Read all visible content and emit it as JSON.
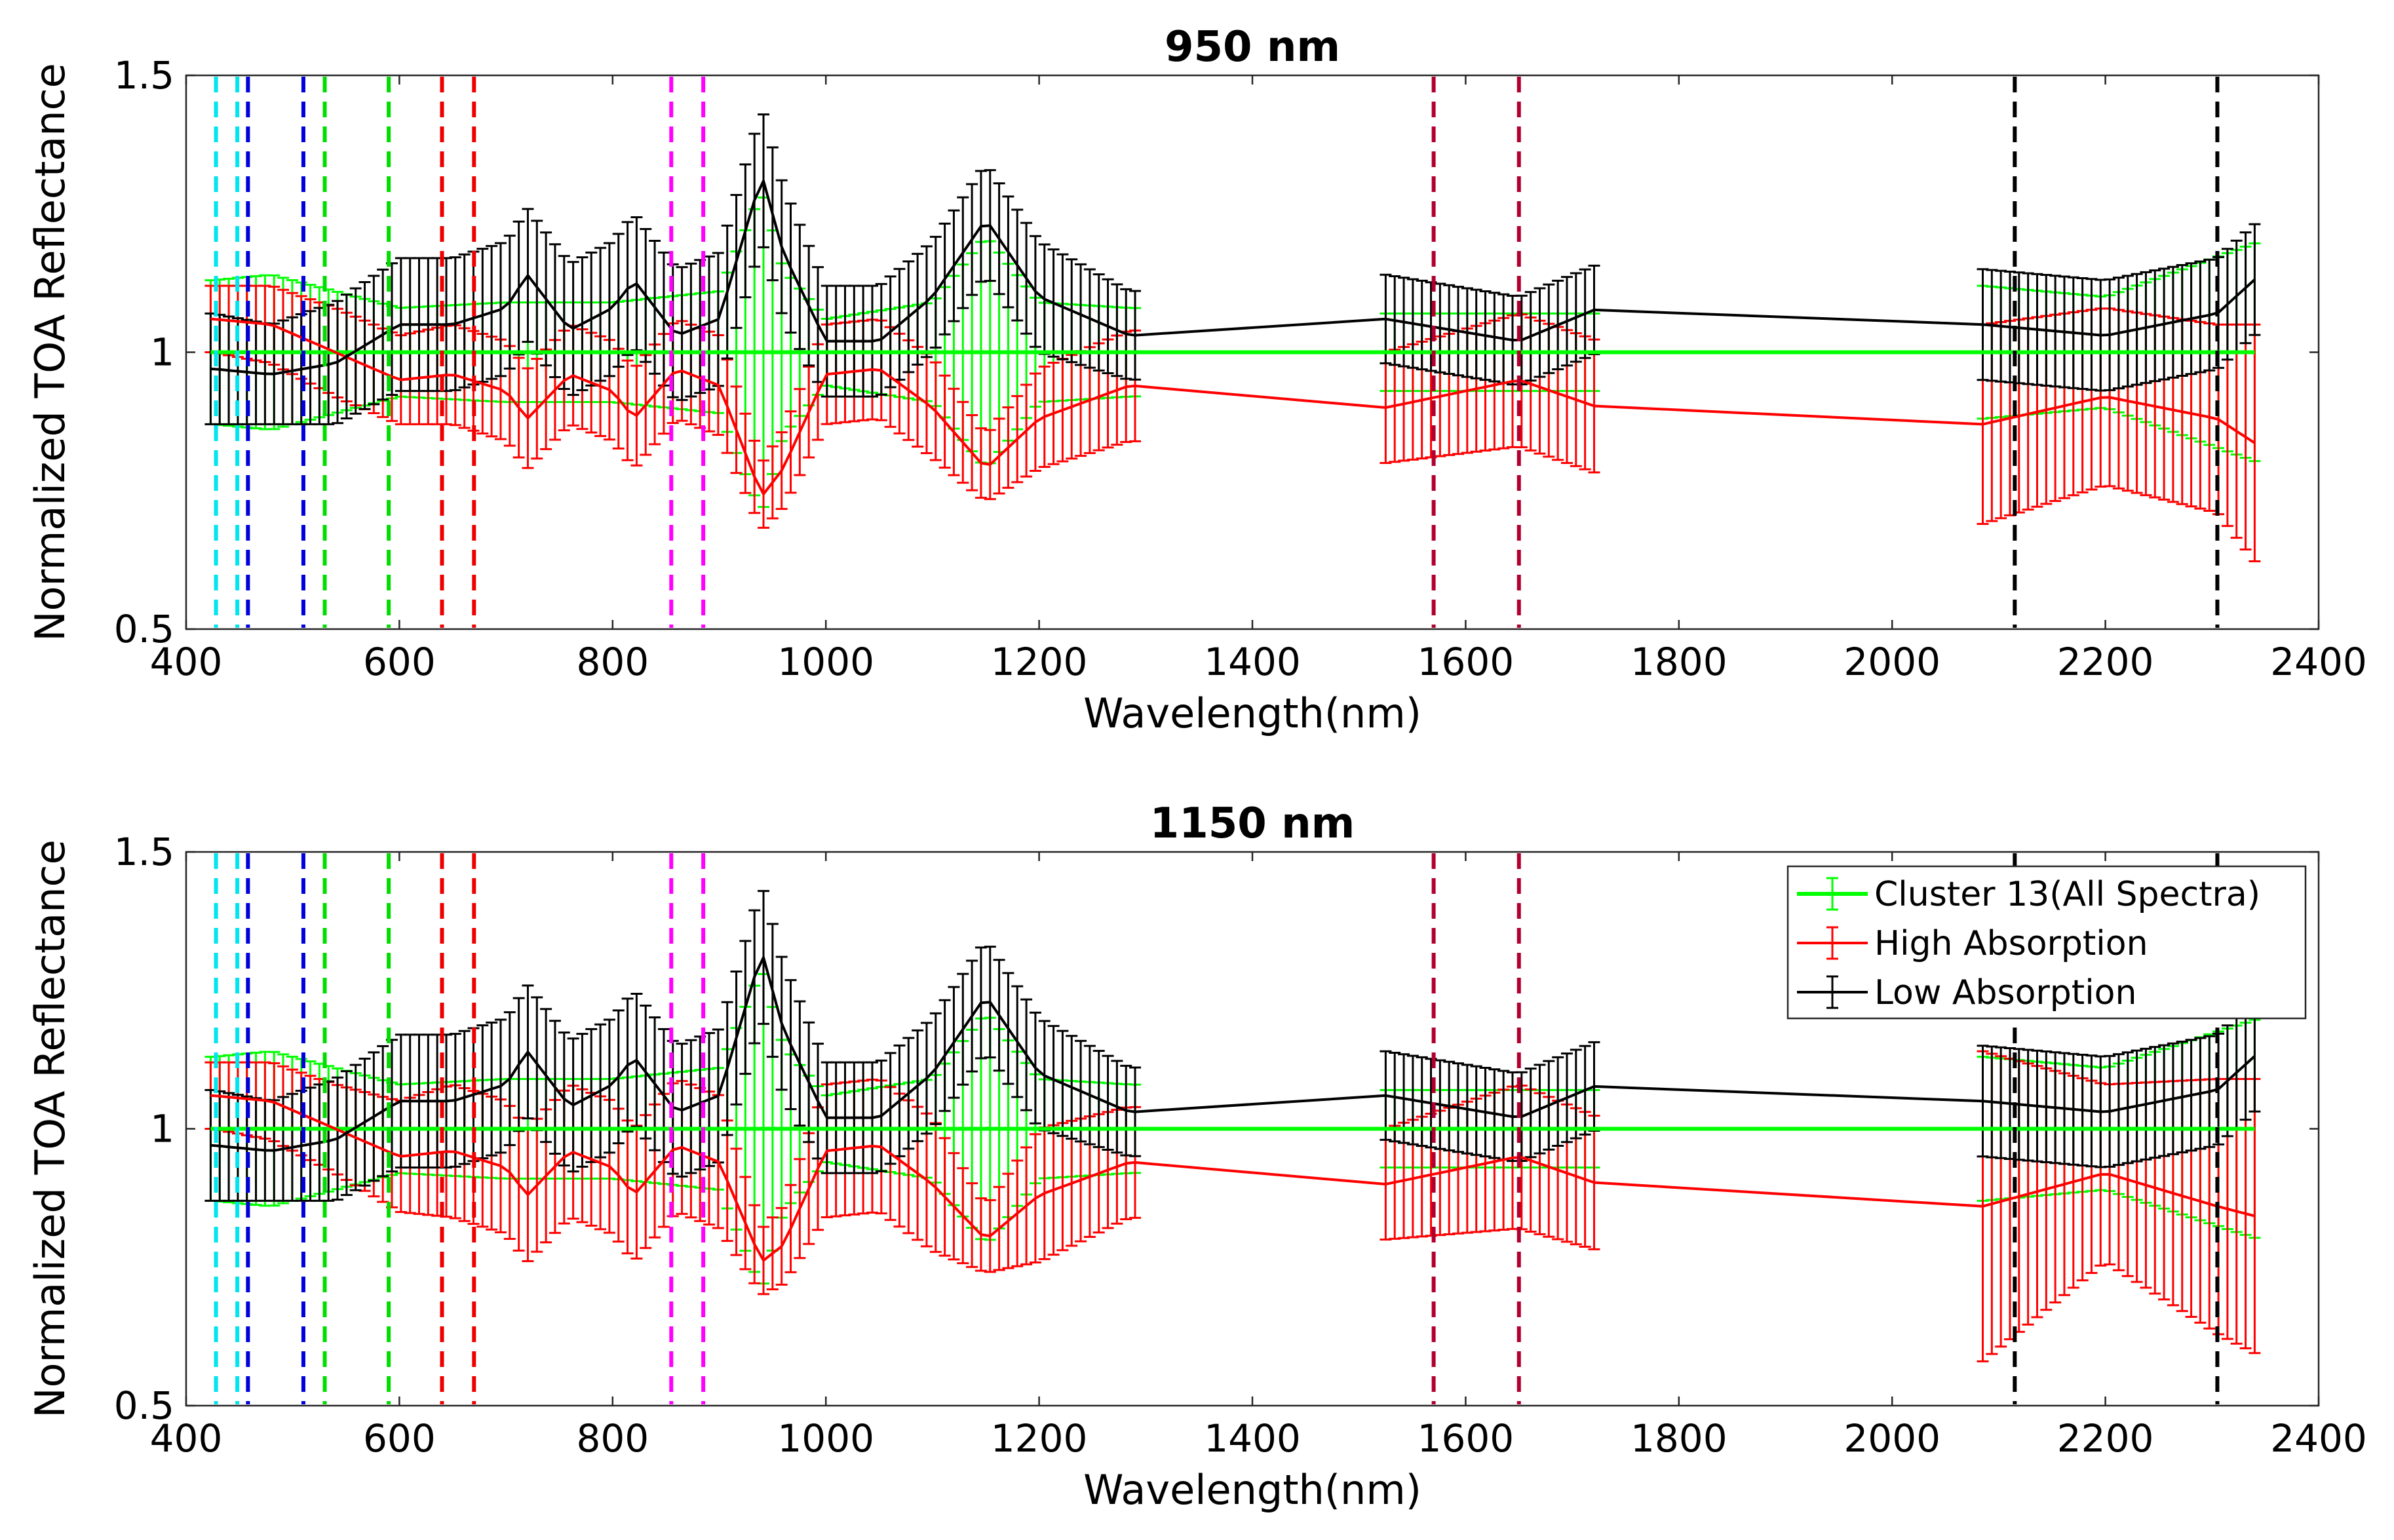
{
  "figure": {
    "colors": {
      "cluster": "#00ff00",
      "high": "#ff0000",
      "low": "#000000",
      "cyan": "#00e5ee",
      "blue": "#0000dd",
      "green": "#00dd00",
      "red": "#ee0000",
      "magenta": "#ff00ff",
      "darkred": "#b00030",
      "black": "#000000"
    }
  },
  "chart_data": [
    {
      "type": "line",
      "error_bars": true,
      "title": "950 nm",
      "xlabel": "Wavelength(nm)",
      "ylabel": "Normalized TOA Reflectance",
      "xlim": [
        400,
        2400
      ],
      "ylim": [
        0.5,
        1.5
      ],
      "xticks": [
        "400",
        "600",
        "800",
        "1000",
        "1200",
        "1400",
        "1600",
        "1800",
        "2000",
        "2200",
        "2400"
      ],
      "yticks": [
        "0.5",
        "1",
        "1.5"
      ],
      "legend": null,
      "vertical_lines": [
        {
          "x": 428,
          "color": "cyan"
        },
        {
          "x": 448,
          "color": "cyan"
        },
        {
          "x": 458,
          "color": "blue"
        },
        {
          "x": 510,
          "color": "blue"
        },
        {
          "x": 530,
          "color": "green"
        },
        {
          "x": 590,
          "color": "green"
        },
        {
          "x": 640,
          "color": "red"
        },
        {
          "x": 670,
          "color": "red"
        },
        {
          "x": 855,
          "color": "magenta"
        },
        {
          "x": 885,
          "color": "magenta"
        },
        {
          "x": 1570,
          "color": "darkred"
        },
        {
          "x": 1650,
          "color": "darkred"
        },
        {
          "x": 2115,
          "color": "black"
        },
        {
          "x": 2305,
          "color": "black"
        }
      ],
      "series": [
        {
          "name": "Cluster 13(All Spectra)",
          "color": "cluster",
          "points": [
            [
              425,
              1.0,
              0.13
            ],
            [
              480,
              1.0,
              0.14
            ],
            [
              540,
              1.0,
              0.11
            ],
            [
              600,
              1.0,
              0.08
            ],
            [
              700,
              1.0,
              0.09
            ],
            [
              800,
              1.0,
              0.09
            ],
            [
              900,
              1.0,
              0.11
            ],
            [
              940,
              1.0,
              0.29
            ],
            [
              960,
              1.0,
              0.15
            ],
            [
              1000,
              1.0,
              0.06
            ],
            [
              1100,
              1.0,
              0.09
            ],
            [
              1150,
              1.0,
              0.21
            ],
            [
              1200,
              1.0,
              0.09
            ],
            [
              1285,
              1.0,
              0.08
            ],
            [
              1525,
              1.0,
              0.07
            ],
            [
              1650,
              1.0,
              0.07
            ],
            [
              1725,
              1.0,
              0.07
            ],
            [
              2085,
              1.0,
              0.12
            ],
            [
              2200,
              1.0,
              0.1
            ],
            [
              2345,
              1.0,
              0.2
            ]
          ]
        },
        {
          "name": "High Absorption",
          "color": "high",
          "points": [
            [
              425,
              1.06,
              0.06
            ],
            [
              480,
              1.05,
              0.07
            ],
            [
              540,
              1.0,
              0.08
            ],
            [
              600,
              0.95,
              0.08
            ],
            [
              650,
              0.96,
              0.09
            ],
            [
              700,
              0.93,
              0.09
            ],
            [
              720,
              0.88,
              0.09
            ],
            [
              760,
              0.96,
              0.09
            ],
            [
              800,
              0.93,
              0.09
            ],
            [
              820,
              0.88,
              0.09
            ],
            [
              860,
              0.97,
              0.09
            ],
            [
              900,
              0.94,
              0.09
            ],
            [
              940,
              0.74,
              0.06
            ],
            [
              960,
              0.79,
              0.07
            ],
            [
              1000,
              0.96,
              0.09
            ],
            [
              1050,
              0.97,
              0.09
            ],
            [
              1100,
              0.9,
              0.09
            ],
            [
              1150,
              0.79,
              0.06
            ],
            [
              1200,
              0.88,
              0.09
            ],
            [
              1285,
              0.94,
              0.1
            ],
            [
              1525,
              0.9,
              0.1
            ],
            [
              1650,
              0.95,
              0.12
            ],
            [
              1725,
              0.9,
              0.12
            ],
            [
              2085,
              0.87,
              0.18
            ],
            [
              2200,
              0.92,
              0.16
            ],
            [
              2305,
              0.88,
              0.17
            ],
            [
              2345,
              0.83,
              0.22
            ]
          ]
        },
        {
          "name": "Low Absorption",
          "color": "low",
          "points": [
            [
              425,
              0.97,
              0.1
            ],
            [
              480,
              0.96,
              0.09
            ],
            [
              540,
              0.98,
              0.11
            ],
            [
              600,
              1.05,
              0.12
            ],
            [
              650,
              1.05,
              0.12
            ],
            [
              700,
              1.08,
              0.12
            ],
            [
              720,
              1.14,
              0.12
            ],
            [
              760,
              1.04,
              0.12
            ],
            [
              800,
              1.08,
              0.12
            ],
            [
              820,
              1.13,
              0.12
            ],
            [
              860,
              1.03,
              0.12
            ],
            [
              900,
              1.06,
              0.12
            ],
            [
              940,
              1.32,
              0.12
            ],
            [
              960,
              1.18,
              0.12
            ],
            [
              1000,
              1.02,
              0.1
            ],
            [
              1050,
              1.02,
              0.1
            ],
            [
              1100,
              1.1,
              0.1
            ],
            [
              1150,
              1.24,
              0.1
            ],
            [
              1200,
              1.1,
              0.1
            ],
            [
              1285,
              1.03,
              0.08
            ],
            [
              1525,
              1.06,
              0.08
            ],
            [
              1650,
              1.02,
              0.08
            ],
            [
              1725,
              1.08,
              0.08
            ],
            [
              2085,
              1.05,
              0.1
            ],
            [
              2200,
              1.03,
              0.1
            ],
            [
              2305,
              1.07,
              0.1
            ],
            [
              2345,
              1.14,
              0.1
            ]
          ]
        }
      ]
    },
    {
      "type": "line",
      "error_bars": true,
      "title": "1150 nm",
      "xlabel": "Wavelength(nm)",
      "ylabel": "Normalized TOA Reflectance",
      "xlim": [
        400,
        2400
      ],
      "ylim": [
        0.5,
        1.5
      ],
      "xticks": [
        "400",
        "600",
        "800",
        "1000",
        "1200",
        "1400",
        "1600",
        "1800",
        "2000",
        "2200",
        "2400"
      ],
      "yticks": [
        "0.5",
        "1",
        "1.5"
      ],
      "legend": {
        "position": "top-right",
        "entries": [
          "Cluster 13(All Spectra)",
          "High Absorption",
          "Low Absorption"
        ]
      },
      "vertical_lines": [
        {
          "x": 428,
          "color": "cyan"
        },
        {
          "x": 448,
          "color": "cyan"
        },
        {
          "x": 458,
          "color": "blue"
        },
        {
          "x": 510,
          "color": "blue"
        },
        {
          "x": 530,
          "color": "green"
        },
        {
          "x": 590,
          "color": "green"
        },
        {
          "x": 640,
          "color": "red"
        },
        {
          "x": 670,
          "color": "red"
        },
        {
          "x": 855,
          "color": "magenta"
        },
        {
          "x": 885,
          "color": "magenta"
        },
        {
          "x": 1570,
          "color": "darkred"
        },
        {
          "x": 1650,
          "color": "darkred"
        },
        {
          "x": 2115,
          "color": "black"
        },
        {
          "x": 2305,
          "color": "black"
        }
      ],
      "series": [
        {
          "name": "Cluster 13(All Spectra)",
          "color": "cluster",
          "points": [
            [
              425,
              1.0,
              0.13
            ],
            [
              480,
              1.0,
              0.14
            ],
            [
              540,
              1.0,
              0.11
            ],
            [
              600,
              1.0,
              0.08
            ],
            [
              700,
              1.0,
              0.09
            ],
            [
              800,
              1.0,
              0.09
            ],
            [
              900,
              1.0,
              0.11
            ],
            [
              940,
              1.0,
              0.29
            ],
            [
              960,
              1.0,
              0.15
            ],
            [
              1000,
              1.0,
              0.06
            ],
            [
              1100,
              1.0,
              0.09
            ],
            [
              1150,
              1.0,
              0.21
            ],
            [
              1200,
              1.0,
              0.09
            ],
            [
              1285,
              1.0,
              0.08
            ],
            [
              1525,
              1.0,
              0.07
            ],
            [
              1650,
              1.0,
              0.07
            ],
            [
              1725,
              1.0,
              0.07
            ],
            [
              2085,
              1.0,
              0.13
            ],
            [
              2200,
              1.0,
              0.11
            ],
            [
              2345,
              1.0,
              0.2
            ]
          ]
        },
        {
          "name": "High Absorption",
          "color": "high",
          "points": [
            [
              425,
              1.06,
              0.06
            ],
            [
              480,
              1.05,
              0.07
            ],
            [
              540,
              1.0,
              0.08
            ],
            [
              600,
              0.95,
              0.1
            ],
            [
              650,
              0.96,
              0.12
            ],
            [
              700,
              0.93,
              0.12
            ],
            [
              720,
              0.88,
              0.12
            ],
            [
              760,
              0.96,
              0.12
            ],
            [
              800,
              0.93,
              0.12
            ],
            [
              820,
              0.88,
              0.12
            ],
            [
              860,
              0.97,
              0.12
            ],
            [
              900,
              0.94,
              0.12
            ],
            [
              940,
              0.76,
              0.06
            ],
            [
              960,
              0.79,
              0.07
            ],
            [
              1000,
              0.96,
              0.12
            ],
            [
              1050,
              0.97,
              0.12
            ],
            [
              1100,
              0.9,
              0.12
            ],
            [
              1150,
              0.8,
              0.06
            ],
            [
              1200,
              0.88,
              0.12
            ],
            [
              1285,
              0.94,
              0.1
            ],
            [
              1525,
              0.9,
              0.1
            ],
            [
              1650,
              0.95,
              0.13
            ],
            [
              1725,
              0.9,
              0.12
            ],
            [
              2085,
              0.86,
              0.28
            ],
            [
              2200,
              0.92,
              0.16
            ],
            [
              2305,
              0.86,
              0.23
            ],
            [
              2345,
              0.84,
              0.25
            ]
          ]
        },
        {
          "name": "Low Absorption",
          "color": "low",
          "points": [
            [
              425,
              0.97,
              0.1
            ],
            [
              480,
              0.96,
              0.09
            ],
            [
              540,
              0.98,
              0.11
            ],
            [
              600,
              1.05,
              0.12
            ],
            [
              650,
              1.05,
              0.12
            ],
            [
              700,
              1.08,
              0.12
            ],
            [
              720,
              1.14,
              0.12
            ],
            [
              760,
              1.04,
              0.12
            ],
            [
              800,
              1.08,
              0.12
            ],
            [
              820,
              1.13,
              0.12
            ],
            [
              860,
              1.03,
              0.12
            ],
            [
              900,
              1.06,
              0.12
            ],
            [
              940,
              1.32,
              0.12
            ],
            [
              960,
              1.18,
              0.12
            ],
            [
              1000,
              1.02,
              0.1
            ],
            [
              1050,
              1.02,
              0.1
            ],
            [
              1100,
              1.1,
              0.1
            ],
            [
              1150,
              1.24,
              0.1
            ],
            [
              1200,
              1.1,
              0.1
            ],
            [
              1285,
              1.03,
              0.08
            ],
            [
              1525,
              1.06,
              0.08
            ],
            [
              1650,
              1.02,
              0.08
            ],
            [
              1725,
              1.08,
              0.08
            ],
            [
              2085,
              1.05,
              0.1
            ],
            [
              2200,
              1.03,
              0.1
            ],
            [
              2305,
              1.07,
              0.1
            ],
            [
              2345,
              1.14,
              0.1
            ]
          ]
        }
      ]
    }
  ]
}
